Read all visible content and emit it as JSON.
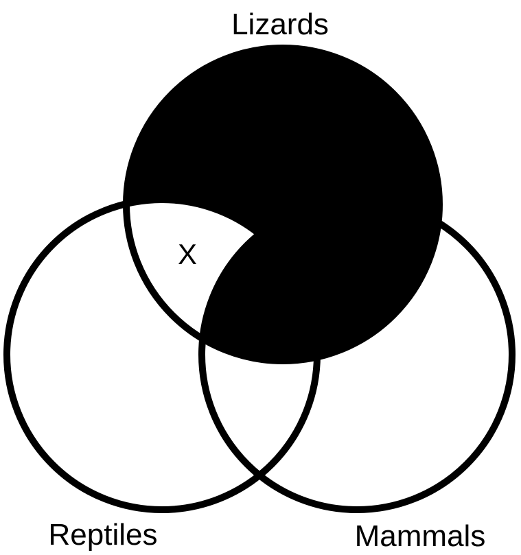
{
  "diagram": {
    "type": "venn",
    "sets": [
      {
        "id": "lizards",
        "label": "Lizards"
      },
      {
        "id": "reptiles",
        "label": "Reptiles"
      },
      {
        "id": "mammals",
        "label": "Mammals"
      }
    ],
    "shaded_regions": [
      "Lizards only",
      "Lizards and Mammals (not Reptiles)",
      "Lizards, Reptiles and Mammals"
    ],
    "marked_regions": [
      {
        "region": "Lizards and Reptiles (not Mammals)",
        "mark": "X"
      }
    ],
    "colors": {
      "stroke": "#000000",
      "shade": "#000000",
      "background": "#ffffff"
    }
  }
}
